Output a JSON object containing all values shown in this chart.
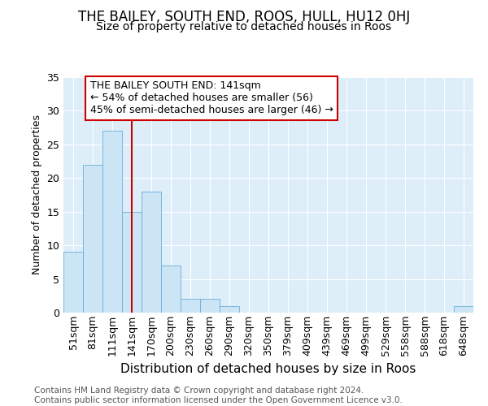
{
  "title1": "THE BAILEY, SOUTH END, ROOS, HULL, HU12 0HJ",
  "title2": "Size of property relative to detached houses in Roos",
  "xlabel": "Distribution of detached houses by size in Roos",
  "ylabel": "Number of detached properties",
  "bin_labels": [
    "51sqm",
    "81sqm",
    "111sqm",
    "141sqm",
    "170sqm",
    "200sqm",
    "230sqm",
    "260sqm",
    "290sqm",
    "320sqm",
    "350sqm",
    "379sqm",
    "409sqm",
    "439sqm",
    "469sqm",
    "499sqm",
    "529sqm",
    "558sqm",
    "588sqm",
    "618sqm",
    "648sqm"
  ],
  "bar_values": [
    9,
    22,
    27,
    15,
    18,
    7,
    2,
    2,
    1,
    0,
    0,
    0,
    0,
    0,
    0,
    0,
    0,
    0,
    0,
    0,
    1
  ],
  "bar_color": "#cce5f5",
  "bar_edgecolor": "#6baed6",
  "vline_bin_index": 3,
  "vline_color": "#cc0000",
  "annotation_line1": "THE BAILEY SOUTH END: 141sqm",
  "annotation_line2": "← 54% of detached houses are smaller (56)",
  "annotation_line3": "45% of semi-detached houses are larger (46) →",
  "annotation_box_facecolor": "#ffffff",
  "annotation_box_edgecolor": "#cc0000",
  "ylim": [
    0,
    35
  ],
  "yticks": [
    0,
    5,
    10,
    15,
    20,
    25,
    30,
    35
  ],
  "plot_bg_color": "#ddeef9",
  "footer_text": "Contains HM Land Registry data © Crown copyright and database right 2024.\nContains public sector information licensed under the Open Government Licence v3.0.",
  "title1_fontsize": 12,
  "title2_fontsize": 10,
  "xlabel_fontsize": 11,
  "ylabel_fontsize": 9,
  "tick_fontsize": 9,
  "annotation_fontsize": 9,
  "footer_fontsize": 7.5
}
